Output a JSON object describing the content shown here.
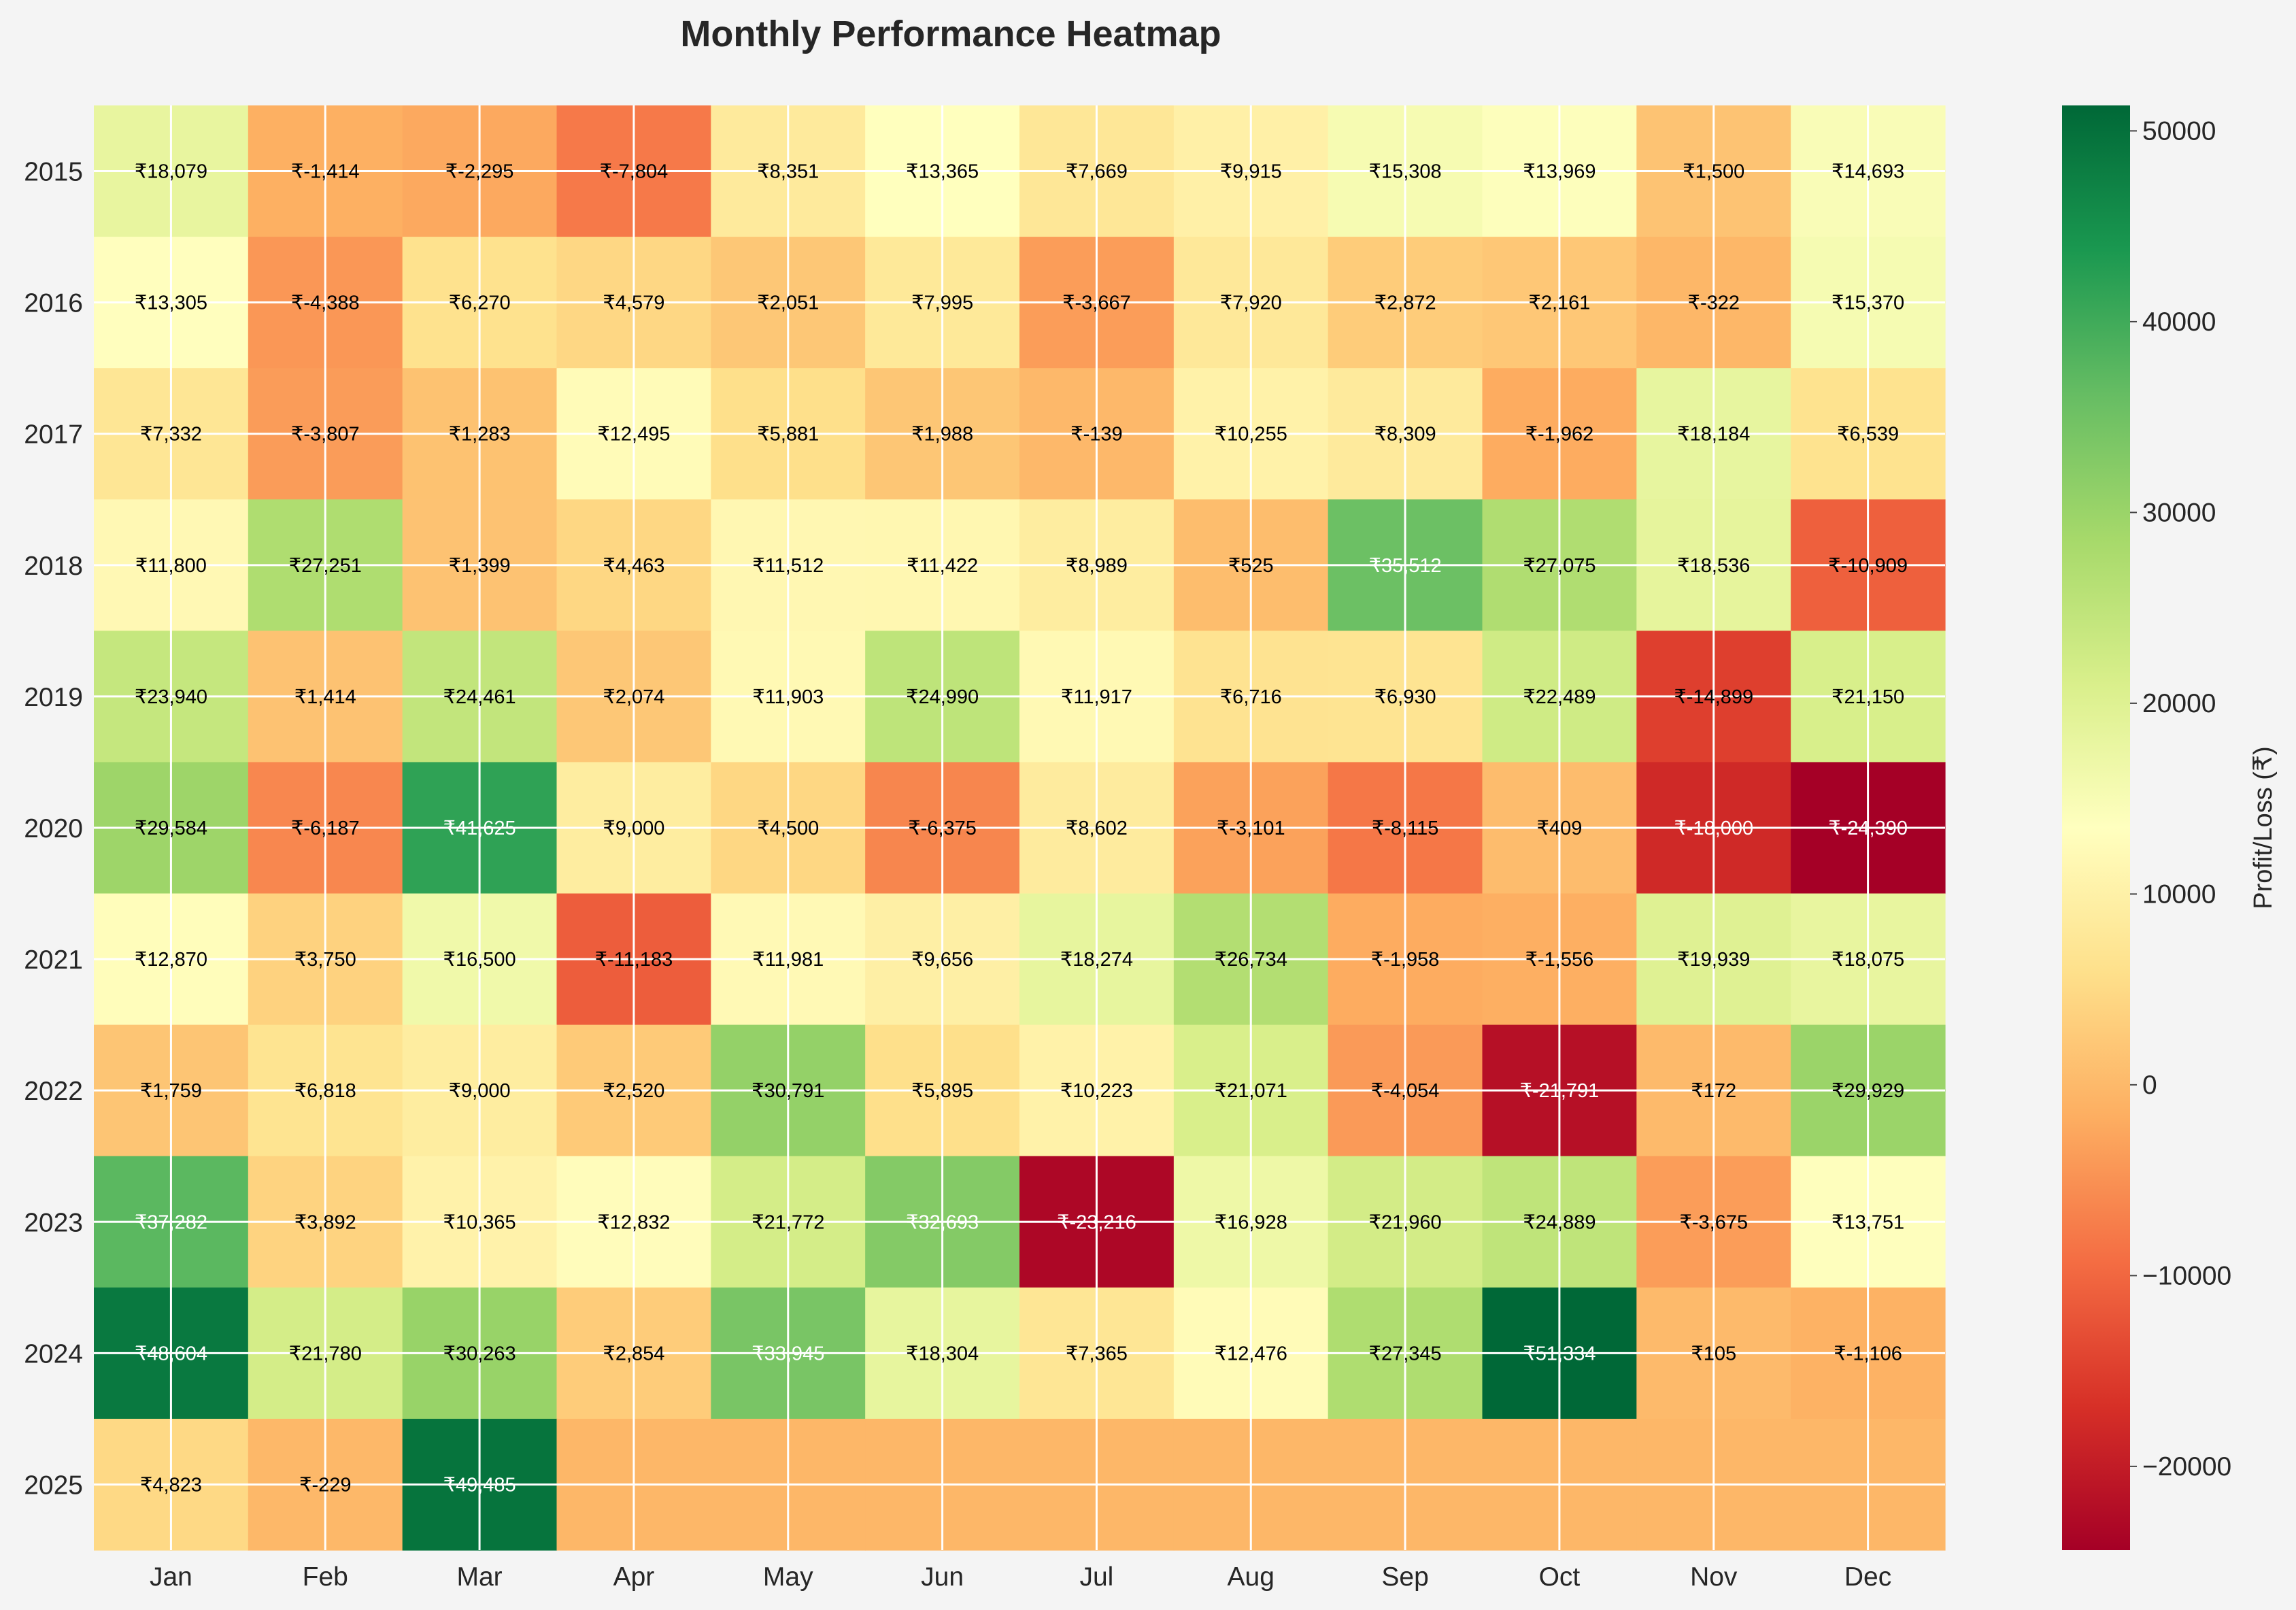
{
  "chart_data": {
    "type": "heatmap",
    "title": "Monthly Performance Heatmap",
    "colorbar_label": "Profit/Loss (₹)",
    "colorbar_ticks": [
      -20000,
      -10000,
      0,
      10000,
      20000,
      30000,
      40000,
      50000
    ],
    "colorbar_tick_labels": [
      "−20000",
      "−10000",
      "0",
      "10000",
      "20000",
      "30000",
      "40000",
      "50000"
    ],
    "value_range": [
      -24390,
      51334
    ],
    "colormap": "RdYlGn",
    "currency_prefix": "₹",
    "grid": true,
    "months": [
      "Jan",
      "Feb",
      "Mar",
      "Apr",
      "May",
      "Jun",
      "Jul",
      "Aug",
      "Sep",
      "Oct",
      "Nov",
      "Dec"
    ],
    "years": [
      "2015",
      "2016",
      "2017",
      "2018",
      "2019",
      "2020",
      "2021",
      "2022",
      "2023",
      "2024",
      "2025"
    ],
    "values": [
      [
        18079,
        -1414,
        -2295,
        -7804,
        8351,
        13365,
        7669,
        9915,
        15308,
        13969,
        1500,
        14693
      ],
      [
        13305,
        -4388,
        6270,
        4579,
        2051,
        7995,
        -3667,
        7920,
        2872,
        2161,
        -322,
        15370
      ],
      [
        7332,
        -3807,
        1283,
        12495,
        5881,
        1988,
        -139,
        10255,
        8309,
        -1962,
        18184,
        6539
      ],
      [
        11800,
        27251,
        1399,
        4463,
        11512,
        11422,
        8989,
        525,
        35512,
        27075,
        18536,
        -10909
      ],
      [
        23940,
        1414,
        24461,
        2074,
        11903,
        24990,
        11917,
        6716,
        6930,
        22489,
        -14899,
        21150
      ],
      [
        29584,
        -6187,
        41625,
        9000,
        4500,
        -6375,
        8602,
        -3101,
        -8115,
        409,
        -18000,
        -24390
      ],
      [
        12870,
        3750,
        16500,
        -11183,
        11981,
        9656,
        18274,
        26734,
        -1958,
        -1556,
        19939,
        18075
      ],
      [
        1759,
        6818,
        9000,
        2520,
        30791,
        5895,
        10223,
        21071,
        -4054,
        -21791,
        172,
        29929
      ],
      [
        37282,
        3892,
        10365,
        12832,
        21772,
        32693,
        -23216,
        16928,
        21960,
        24889,
        -3675,
        13751
      ],
      [
        48604,
        21780,
        30263,
        2854,
        33945,
        18304,
        7365,
        12476,
        27345,
        51334,
        105,
        -1106
      ],
      [
        4823,
        -229,
        49485,
        null,
        null,
        null,
        null,
        null,
        null,
        null,
        null,
        null
      ]
    ],
    "missing_color": "#fdb768",
    "colors": {
      "background": "#f4f4f4",
      "gridline": "#ffffff",
      "text_dark": "#000000",
      "text_light": "#ffffff"
    }
  }
}
